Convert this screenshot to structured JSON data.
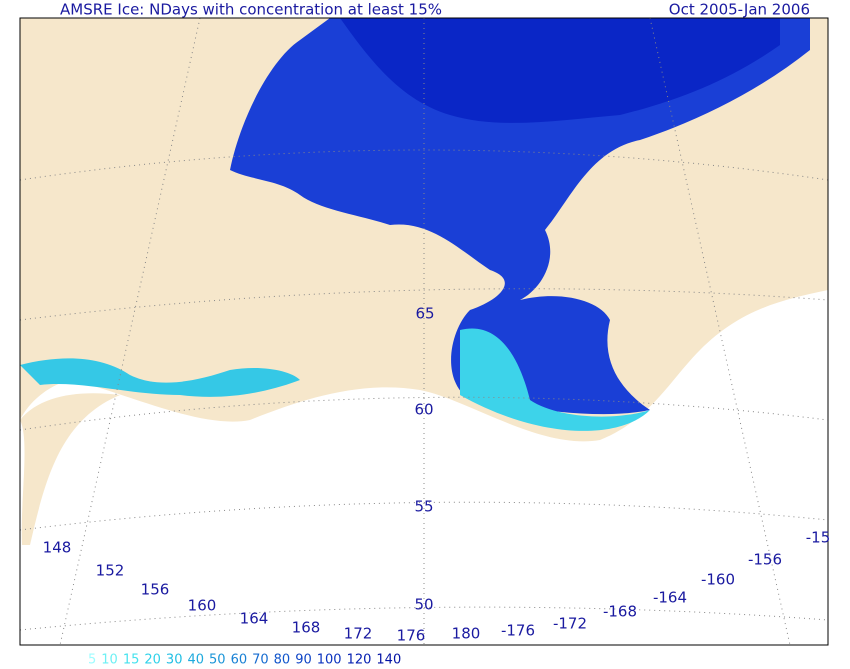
{
  "header": {
    "title_left": "AMSRE Ice: NDays with concentration at least 15%",
    "title_right": "Oct 2005-Jan 2006"
  },
  "latitude_labels": [
    {
      "label": "65"
    },
    {
      "label": "60"
    },
    {
      "label": "55"
    },
    {
      "label": "50"
    }
  ],
  "longitude_labels": [
    {
      "label": "148"
    },
    {
      "label": "152"
    },
    {
      "label": "156"
    },
    {
      "label": "160"
    },
    {
      "label": "164"
    },
    {
      "label": "168"
    },
    {
      "label": "172"
    },
    {
      "label": "176"
    },
    {
      "label": "180"
    },
    {
      "label": "-176"
    },
    {
      "label": "-172"
    },
    {
      "label": "-168"
    },
    {
      "label": "-164"
    },
    {
      "label": "-160"
    },
    {
      "label": "-156"
    },
    {
      "label": "-15"
    }
  ],
  "legend": [
    {
      "label": "5",
      "color": "#9ffcff"
    },
    {
      "label": "10",
      "color": "#6df0f4"
    },
    {
      "label": "15",
      "color": "#45e2ee"
    },
    {
      "label": "20",
      "color": "#2fd2ea"
    },
    {
      "label": "30",
      "color": "#22bfe4"
    },
    {
      "label": "40",
      "color": "#1eaadd"
    },
    {
      "label": "50",
      "color": "#1b95d8"
    },
    {
      "label": "60",
      "color": "#1880d4"
    },
    {
      "label": "70",
      "color": "#156bd0"
    },
    {
      "label": "80",
      "color": "#1256cc"
    },
    {
      "label": "90",
      "color": "#0e44c6"
    },
    {
      "label": "100",
      "color": "#0a32bf"
    },
    {
      "label": "120",
      "color": "#0620b2"
    },
    {
      "label": "140",
      "color": "#0212a4"
    }
  ]
}
